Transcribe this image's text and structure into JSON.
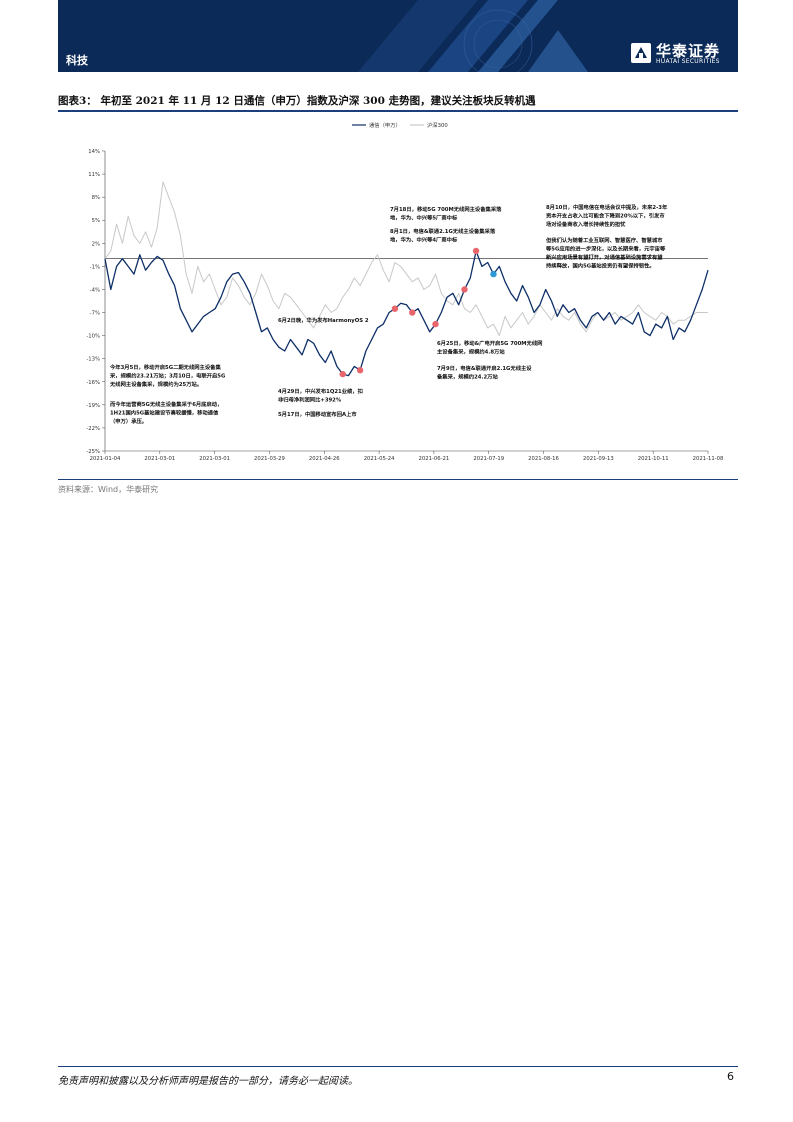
{
  "header": {
    "section": "科技",
    "logo_cn": "华泰证券",
    "logo_en": "HUATAI SECURITIES"
  },
  "figure": {
    "title": "图表3： 年初至 2021 年 11 月 12 日通信（申万）指数及沪深 300 走势图，建议关注板块反转机遇",
    "source": "资料来源：Wind，华泰研究"
  },
  "footer": {
    "disclaimer": "免责声明和披露以及分析师声明是报告的一部分，请务必一起阅读。",
    "page": "6"
  },
  "chart_data": {
    "type": "line",
    "xlabel": "",
    "ylabel": "",
    "ylim": [
      -25,
      14
    ],
    "y_ticks": [
      "14%",
      "11%",
      "8%",
      "5%",
      "2%",
      "-1%",
      "-4%",
      "-7%",
      "-10%",
      "-13%",
      "-16%",
      "-19%",
      "-22%",
      "-25%"
    ],
    "x_ticks": [
      "2021-01-04",
      "2021-03-01",
      "2021-03-01",
      "2021-03-29",
      "2021-04-26",
      "2021-05-24",
      "2021-06-21",
      "2021-07-19",
      "2021-08-16",
      "2021-09-13",
      "2021-10-11",
      "2021-11-08"
    ],
    "legend_position": "top-center",
    "grid": false,
    "colors": {
      "telecom": "#0e2f68",
      "hs300": "#c8c8c8",
      "event_red": "#e8666b",
      "event_blue": "#2f98d6"
    },
    "series": [
      {
        "name": "通信（申万）",
        "values": [
          0.0,
          -4.0,
          -1.0,
          0.0,
          -1.0,
          -2.0,
          0.5,
          -1.5,
          -0.5,
          0.3,
          -0.2,
          -2.0,
          -3.5,
          -6.5,
          -8.0,
          -9.5,
          -8.5,
          -7.5,
          -7.0,
          -6.5,
          -5.0,
          -3.0,
          -2.0,
          -1.8,
          -3.0,
          -4.5,
          -7.0,
          -9.5,
          -9.0,
          -10.5,
          -11.5,
          -12.0,
          -10.5,
          -11.5,
          -12.5,
          -10.5,
          -11.0,
          -12.5,
          -13.5,
          -12.0,
          -14.0,
          -15.0,
          -15.2,
          -14.0,
          -14.5,
          -12.0,
          -10.5,
          -9.0,
          -8.5,
          -7.0,
          -6.5,
          -5.8,
          -6.0,
          -7.0,
          -6.5,
          -8.0,
          -9.5,
          -8.5,
          -7.0,
          -5.0,
          -4.5,
          -6.0,
          -4.0,
          -2.5,
          1.0,
          -1.0,
          -0.5,
          -2.0,
          -1.0,
          -3.0,
          -4.5,
          -5.5,
          -3.5,
          -5.0,
          -7.0,
          -6.0,
          -4.0,
          -5.5,
          -7.5,
          -6.0,
          -7.0,
          -6.5,
          -8.0,
          -9.0,
          -7.5,
          -7.0,
          -8.0,
          -7.0,
          -8.5,
          -7.5,
          -8.0,
          -8.5,
          -7.0,
          -9.5,
          -10.0,
          -8.5,
          -9.0,
          -7.5,
          -10.5,
          -9.0,
          -9.5,
          -8.0,
          -6.0,
          -4.0,
          -1.5
        ]
      },
      {
        "name": "沪深300",
        "values": [
          0.0,
          1.0,
          4.5,
          2.0,
          5.5,
          3.0,
          2.0,
          3.5,
          1.5,
          4.0,
          10.0,
          8.0,
          6.0,
          3.0,
          -2.0,
          -4.5,
          -1.0,
          -3.0,
          -2.0,
          -4.0,
          -6.0,
          -5.0,
          -2.5,
          -3.5,
          -5.0,
          -6.0,
          -4.5,
          -2.0,
          -3.5,
          -5.5,
          -6.5,
          -4.5,
          -5.0,
          -6.0,
          -7.0,
          -8.0,
          -9.0,
          -7.5,
          -6.0,
          -7.0,
          -6.5,
          -5.0,
          -4.0,
          -2.5,
          -3.5,
          -2.0,
          -0.5,
          0.5,
          -1.5,
          -3.0,
          -0.5,
          -1.0,
          -2.0,
          -3.0,
          -2.5,
          -4.0,
          -3.5,
          -2.0,
          -4.5,
          -5.5,
          -6.0,
          -4.5,
          -6.5,
          -7.0,
          -6.0,
          -7.5,
          -9.0,
          -8.5,
          -10.0,
          -7.5,
          -9.0,
          -8.0,
          -7.0,
          -8.5,
          -7.5,
          -6.0,
          -7.0,
          -8.0,
          -6.5,
          -7.5,
          -8.0,
          -7.0,
          -8.5,
          -9.5,
          -8.0,
          -7.0,
          -8.0,
          -7.5,
          -7.0,
          -8.0,
          -7.5,
          -7.0,
          -6.0,
          -7.0,
          -7.5,
          -8.0,
          -7.0,
          -7.5,
          -8.5,
          -8.0,
          -8.0,
          -7.5,
          -7.0,
          -7.0,
          -7.0
        ]
      }
    ],
    "events": [
      {
        "i": 41,
        "color": "red"
      },
      {
        "i": 44,
        "color": "red"
      },
      {
        "i": 50,
        "color": "red"
      },
      {
        "i": 53,
        "color": "red"
      },
      {
        "i": 57,
        "color": "red"
      },
      {
        "i": 62,
        "color": "red"
      },
      {
        "i": 64,
        "color": "red"
      },
      {
        "i": 67,
        "color": "blue"
      }
    ],
    "annotations": [
      {
        "id": "a1",
        "lines": [
          "今年3月5日，移动开启5G二期无线网主设备集",
          "采，规模约23.21万站；3月10日，电联开启5G",
          "无线网主设备集采，规模约为25万站。"
        ]
      },
      {
        "id": "a2",
        "lines": [
          "而今年运营商5G无线主设备集采于6月底启动，",
          "1H21国内5G基站建设节奏较缓慢，移动通信",
          "（申万）承压。"
        ]
      },
      {
        "id": "a3",
        "lines": [
          "6月2日晚，华为发布HarmonyOS 2"
        ]
      },
      {
        "id": "a4",
        "lines": [
          "4月29日，中兴发布1Q21业绩，扣",
          "非归母净利润同比+392%"
        ]
      },
      {
        "id": "a5",
        "lines": [
          "5月17日，中国移动宣布回A上市"
        ]
      },
      {
        "id": "a6",
        "lines": [
          "7月18日，移动5G 700M无线网主设备集采落",
          "地，华为、中兴等5厂商中标"
        ]
      },
      {
        "id": "a7",
        "lines": [
          "8月1日，电信&联通2.1G无线主设备集采落",
          "地，华为、中兴等4厂商中标"
        ]
      },
      {
        "id": "a8",
        "lines": [
          "6月25日，移动&广电开启5G 700M无线网",
          "主设备集采，规模约4.8万站"
        ]
      },
      {
        "id": "a9",
        "lines": [
          "7月9日，电信&联通开启2.1G无线主设",
          "备集采，规模约24.2万站"
        ]
      },
      {
        "id": "a10",
        "lines": [
          "8月10日，中国电信在电话会议中提及，未来2-3年",
          "资本开支占收入比可能会下降到20%以下，引发市",
          "场对设备商收入增长持续性的担忧"
        ]
      },
      {
        "id": "a11",
        "lines": [
          "但我们认为随着工业互联网、智慧医疗、智慧城市",
          "等5G应用的进一步深化，以及长期来看，元宇宙等",
          "新兴应用场景有望打开，对通信基础设施需求有望",
          "持续释放，国内5G基站投资仍有望保持韧性。"
        ]
      }
    ]
  }
}
